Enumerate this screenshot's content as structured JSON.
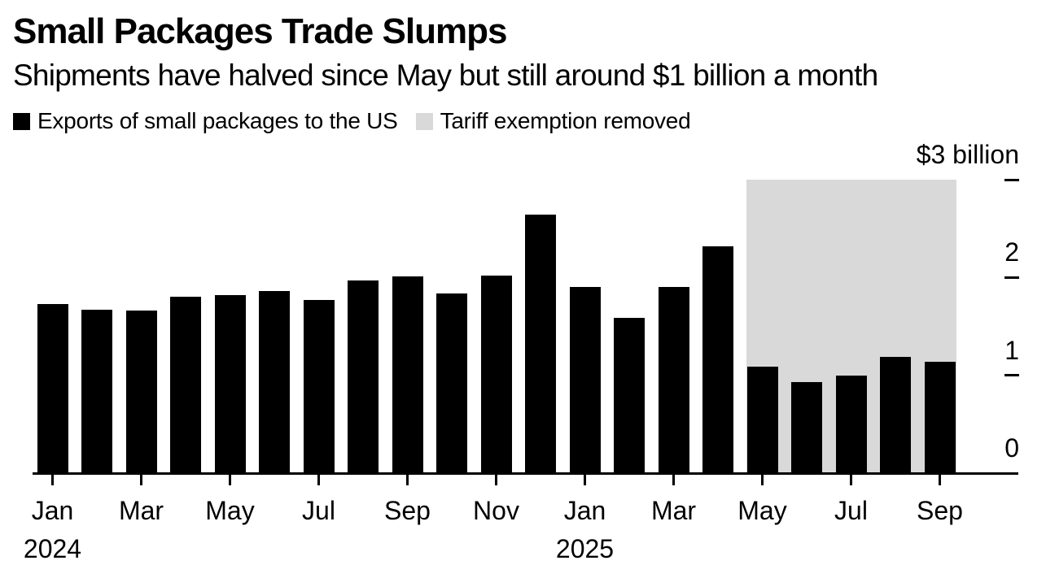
{
  "header": {
    "title": "Small Packages Trade Slumps",
    "subtitle": "Shipments have halved since May but still around $1 billion a month"
  },
  "legend": [
    {
      "label": "Exports of small packages to the US",
      "swatch_color": "#000000"
    },
    {
      "label": "Tariff exemption removed",
      "swatch_color": "#d9d9d9"
    }
  ],
  "chart_data": {
    "type": "bar",
    "title": "Small Packages Trade Slumps",
    "subtitle": "Shipments have halved since May but still around $1 billion a month",
    "unit": "USD billions per month",
    "categories": [
      "Jan 2024",
      "Feb 2024",
      "Mar 2024",
      "Apr 2024",
      "May 2024",
      "Jun 2024",
      "Jul 2024",
      "Aug 2024",
      "Sep 2024",
      "Oct 2024",
      "Nov 2024",
      "Dec 2024",
      "Jan 2025",
      "Feb 2025",
      "Mar 2025",
      "Apr 2025",
      "May 2025",
      "Jun 2025",
      "Jul 2025",
      "Aug 2025",
      "Sep 2025"
    ],
    "series": [
      {
        "name": "Exports of small packages to the US",
        "color": "#000000",
        "values": [
          1.73,
          1.67,
          1.66,
          1.8,
          1.82,
          1.86,
          1.77,
          1.97,
          2.01,
          1.84,
          2.02,
          2.64,
          1.9,
          1.59,
          1.9,
          2.32,
          1.09,
          0.93,
          1.0,
          1.19,
          1.14
        ]
      }
    ],
    "ylim": [
      0,
      3
    ],
    "grid": false,
    "legend_position": "top-left",
    "y_axis": {
      "side": "right",
      "ticks": [
        {
          "value": 3,
          "label": "$3 billion"
        },
        {
          "value": 2,
          "label": "2"
        },
        {
          "value": 1,
          "label": "1"
        },
        {
          "value": 0,
          "label": "0"
        }
      ]
    },
    "x_axis": {
      "ticks": [
        {
          "index": 0,
          "label": "Jan",
          "year": "2024"
        },
        {
          "index": 2,
          "label": "Mar"
        },
        {
          "index": 4,
          "label": "May"
        },
        {
          "index": 6,
          "label": "Jul"
        },
        {
          "index": 8,
          "label": "Sep"
        },
        {
          "index": 10,
          "label": "Nov"
        },
        {
          "index": 12,
          "label": "Jan",
          "year": "2025"
        },
        {
          "index": 14,
          "label": "Mar"
        },
        {
          "index": 16,
          "label": "May"
        },
        {
          "index": 18,
          "label": "Jul"
        },
        {
          "index": 20,
          "label": "Sep"
        }
      ]
    },
    "shaded_region": {
      "label": "Tariff exemption removed",
      "color": "#d9d9d9",
      "start_category": "May 2025",
      "end_category": "Sep 2025",
      "start_index": 16,
      "end_index": 20,
      "from_value": 0,
      "to_value": 3
    }
  }
}
